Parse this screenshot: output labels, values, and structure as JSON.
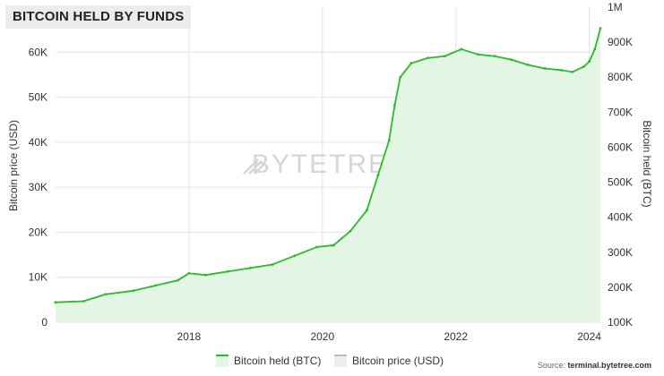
{
  "title": "BITCOIN HELD BY FUNDS",
  "watermark": "BYTETREE",
  "source_label": "Source:",
  "source_site": "terminal.bytetree.com",
  "colors": {
    "held_line": "#2db82d",
    "held_fill": "#e3f6e3",
    "price_swatch": "#d8d8d8",
    "grid": "#e4e4e4",
    "watermark": "#d6d6d6"
  },
  "legend": [
    {
      "label": "Bitcoin held (BTC)",
      "color": "#2db82d",
      "fill": "#e3f6e3"
    },
    {
      "label": "Bitcoin price (USD)",
      "color": "#bdbdbd",
      "fill": "#eeeeee"
    }
  ],
  "chart_data": {
    "type": "area",
    "title": "BITCOIN HELD BY FUNDS",
    "xlabel": "",
    "ylabel_left": "Bitcoin price (USD)",
    "ylabel_right": "Bitcoin held (BTC)",
    "x_ticks": [
      "2018",
      "2020",
      "2022",
      "2024"
    ],
    "y_left_ticks": [
      "0",
      "10K",
      "20K",
      "30K",
      "40K",
      "50K",
      "60K"
    ],
    "y_left_range": [
      0,
      70000
    ],
    "y_right_ticks": [
      "100K",
      "200K",
      "300K",
      "400K",
      "500K",
      "600K",
      "700K",
      "800K",
      "900K",
      "1M"
    ],
    "y_right_range": [
      100000,
      1000000
    ],
    "x_range": [
      "2016-01",
      "2024-03"
    ],
    "grid": true,
    "legend_position": "bottom",
    "series": [
      {
        "name": "Bitcoin held (BTC)",
        "axis": "right",
        "x": [
          "2016-01",
          "2016-06",
          "2016-10",
          "2017-03",
          "2017-07",
          "2017-11",
          "2018-01",
          "2018-04",
          "2018-08",
          "2018-12",
          "2019-04",
          "2019-08",
          "2019-12",
          "2020-03",
          "2020-06",
          "2020-09",
          "2020-11",
          "2021-01",
          "2021-02",
          "2021-03",
          "2021-05",
          "2021-08",
          "2021-11",
          "2022-02",
          "2022-05",
          "2022-08",
          "2022-11",
          "2023-02",
          "2023-05",
          "2023-08",
          "2023-10",
          "2023-12",
          "2024-01",
          "2024-02",
          "2024-03"
        ],
        "values": [
          157000,
          160000,
          180000,
          190000,
          205000,
          220000,
          240000,
          235000,
          245000,
          255000,
          265000,
          290000,
          315000,
          320000,
          360000,
          420000,
          520000,
          620000,
          720000,
          800000,
          840000,
          855000,
          860000,
          880000,
          865000,
          860000,
          850000,
          835000,
          825000,
          820000,
          815000,
          830000,
          845000,
          880000,
          940000
        ]
      }
    ]
  }
}
